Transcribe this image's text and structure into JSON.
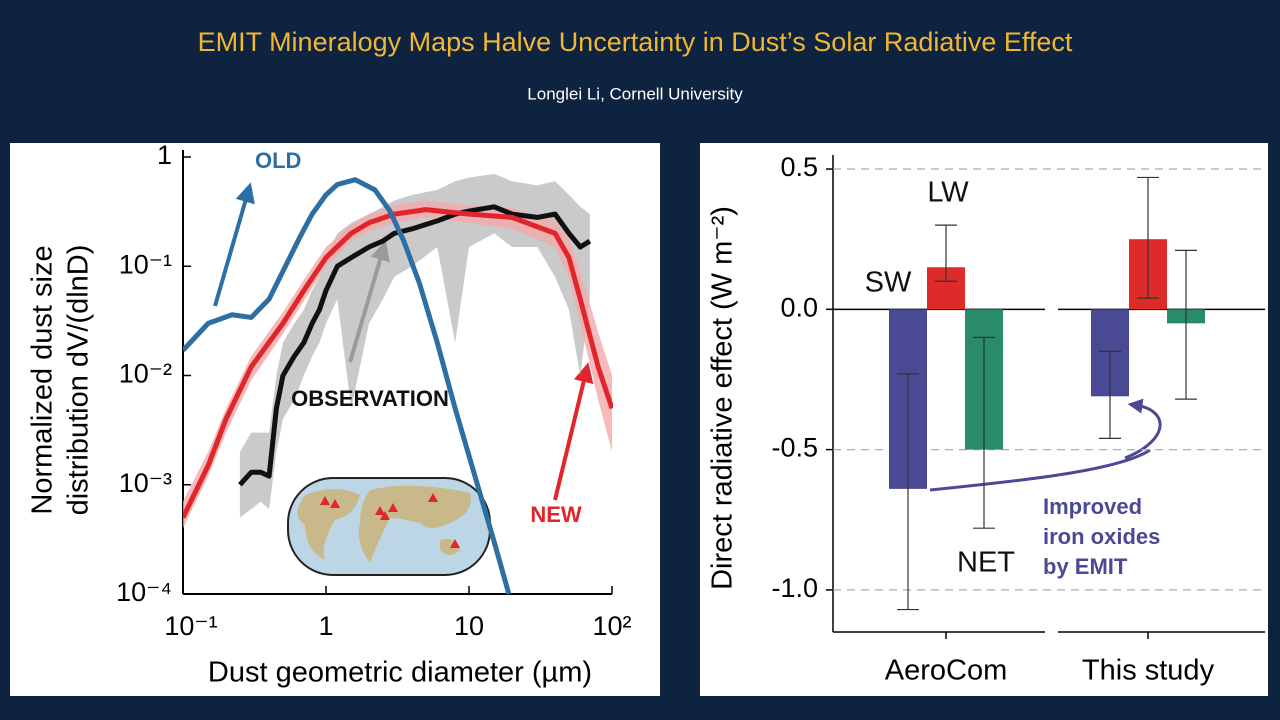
{
  "header": {
    "title": "EMIT Mineralogy Maps Halve Uncertainty in Dust’s Solar Radiative Effect",
    "subtitle": "Longlei Li, Cornell University"
  },
  "chart_data": [
    {
      "type": "line",
      "ylabel": [
        "Normalized dust size",
        "distribution dV/(dlnD)"
      ],
      "xlabel": "Dust geometric diameter (µm)",
      "log_x": true,
      "log_y": true,
      "xlim": [
        0.1,
        100
      ],
      "ylim": [
        0.0001,
        1
      ],
      "xticks": [
        {
          "value": 0.1,
          "label": "10⁻¹"
        },
        1,
        10,
        {
          "value": 100,
          "label": "10²"
        }
      ],
      "yticks": [
        {
          "value": 0.0001,
          "label": "10⁻⁴"
        },
        {
          "value": 0.001,
          "label": "10⁻³"
        },
        {
          "value": 0.01,
          "label": "10⁻²"
        },
        {
          "value": 0.1,
          "label": "10⁻¹"
        },
        1
      ],
      "series": [
        {
          "name": "OLD",
          "color": "#2e6fa3",
          "x": [
            0.1,
            0.15,
            0.22,
            0.3,
            0.4,
            0.5,
            0.65,
            0.8,
            1,
            1.2,
            1.6,
            2.2,
            2.8,
            3.5,
            4.5,
            6,
            8,
            11,
            15,
            19
          ],
          "values": [
            0.017,
            0.03,
            0.036,
            0.034,
            0.05,
            0.09,
            0.18,
            0.3,
            0.45,
            0.56,
            0.62,
            0.5,
            0.32,
            0.17,
            0.07,
            0.02,
            0.005,
            0.0012,
            0.0003,
            0.0001
          ]
        },
        {
          "name": "NEW",
          "color": "#e0262b",
          "x": [
            0.1,
            0.15,
            0.2,
            0.3,
            0.5,
            0.7,
            1,
            1.5,
            2,
            3,
            5,
            10,
            20,
            40,
            50,
            60,
            80,
            100
          ],
          "values": [
            0.0005,
            0.0015,
            0.004,
            0.012,
            0.03,
            0.06,
            0.12,
            0.2,
            0.25,
            0.3,
            0.33,
            0.3,
            0.28,
            0.2,
            0.12,
            0.05,
            0.012,
            0.005
          ],
          "lower": [
            0.0004,
            0.0012,
            0.003,
            0.009,
            0.024,
            0.048,
            0.1,
            0.17,
            0.21,
            0.25,
            0.28,
            0.25,
            0.22,
            0.15,
            0.08,
            0.03,
            0.006,
            0.002
          ],
          "upper": [
            0.0007,
            0.002,
            0.005,
            0.015,
            0.038,
            0.075,
            0.15,
            0.24,
            0.3,
            0.36,
            0.4,
            0.36,
            0.34,
            0.26,
            0.18,
            0.09,
            0.025,
            0.01
          ]
        },
        {
          "name": "OBSERVATION",
          "color": "#111111",
          "x": [
            0.25,
            0.3,
            0.35,
            0.4,
            0.45,
            0.5,
            0.6,
            0.7,
            0.8,
            0.9,
            1,
            1.2,
            1.5,
            2,
            2.5,
            3,
            4,
            6,
            8,
            10,
            15,
            20,
            30,
            40,
            50,
            60,
            70
          ],
          "values": [
            0.001,
            0.0013,
            0.0013,
            0.0012,
            0.005,
            0.01,
            0.015,
            0.02,
            0.03,
            0.04,
            0.06,
            0.1,
            0.12,
            0.15,
            0.17,
            0.2,
            0.22,
            0.26,
            0.3,
            0.32,
            0.35,
            0.3,
            0.28,
            0.3,
            0.2,
            0.15,
            0.17
          ],
          "lower": [
            0.0005,
            0.0006,
            0.0007,
            0.0006,
            0.002,
            0.004,
            0.006,
            0.01,
            0.015,
            0.02,
            0.03,
            0.05,
            0.005,
            0.03,
            0.05,
            0.08,
            0.1,
            0.15,
            0.02,
            0.15,
            0.2,
            0.15,
            0.15,
            0.08,
            0.04,
            0.01,
            0.05
          ],
          "upper": [
            0.002,
            0.003,
            0.003,
            0.003,
            0.01,
            0.02,
            0.03,
            0.04,
            0.06,
            0.08,
            0.12,
            0.2,
            0.25,
            0.3,
            0.35,
            0.4,
            0.45,
            0.5,
            0.6,
            0.65,
            0.7,
            0.6,
            0.55,
            0.6,
            0.45,
            0.35,
            0.3
          ]
        }
      ]
    },
    {
      "type": "grouped_bar",
      "ylabel": "Direct radiative effect (W m⁻²)",
      "categories": [
        "AeroCom",
        "This study"
      ],
      "ylim": [
        -1.15,
        0.55
      ],
      "yticks": [
        0.5,
        {
          "value": 0,
          "label": "0.0"
        },
        -0.5,
        {
          "value": -1,
          "label": "-1.0"
        }
      ],
      "grid": true,
      "series": [
        {
          "name": "SW",
          "color": "#4a4a94",
          "values": [
            -0.64,
            -0.31
          ],
          "lower": [
            -1.07,
            -0.46
          ],
          "upper": [
            -0.23,
            -0.15
          ]
        },
        {
          "name": "LW",
          "color": "#df2a2a",
          "values": [
            0.15,
            0.25
          ],
          "lower": [
            0.1,
            0.04
          ],
          "upper": [
            0.3,
            0.47
          ]
        },
        {
          "name": "NET",
          "color": "#2a8a6c",
          "values": [
            -0.5,
            -0.05
          ],
          "lower": [
            -0.78,
            -0.32
          ],
          "upper": [
            -0.1,
            0.21
          ]
        }
      ],
      "annotation": [
        "Improved",
        "iron oxides",
        "by EMIT"
      ]
    }
  ]
}
